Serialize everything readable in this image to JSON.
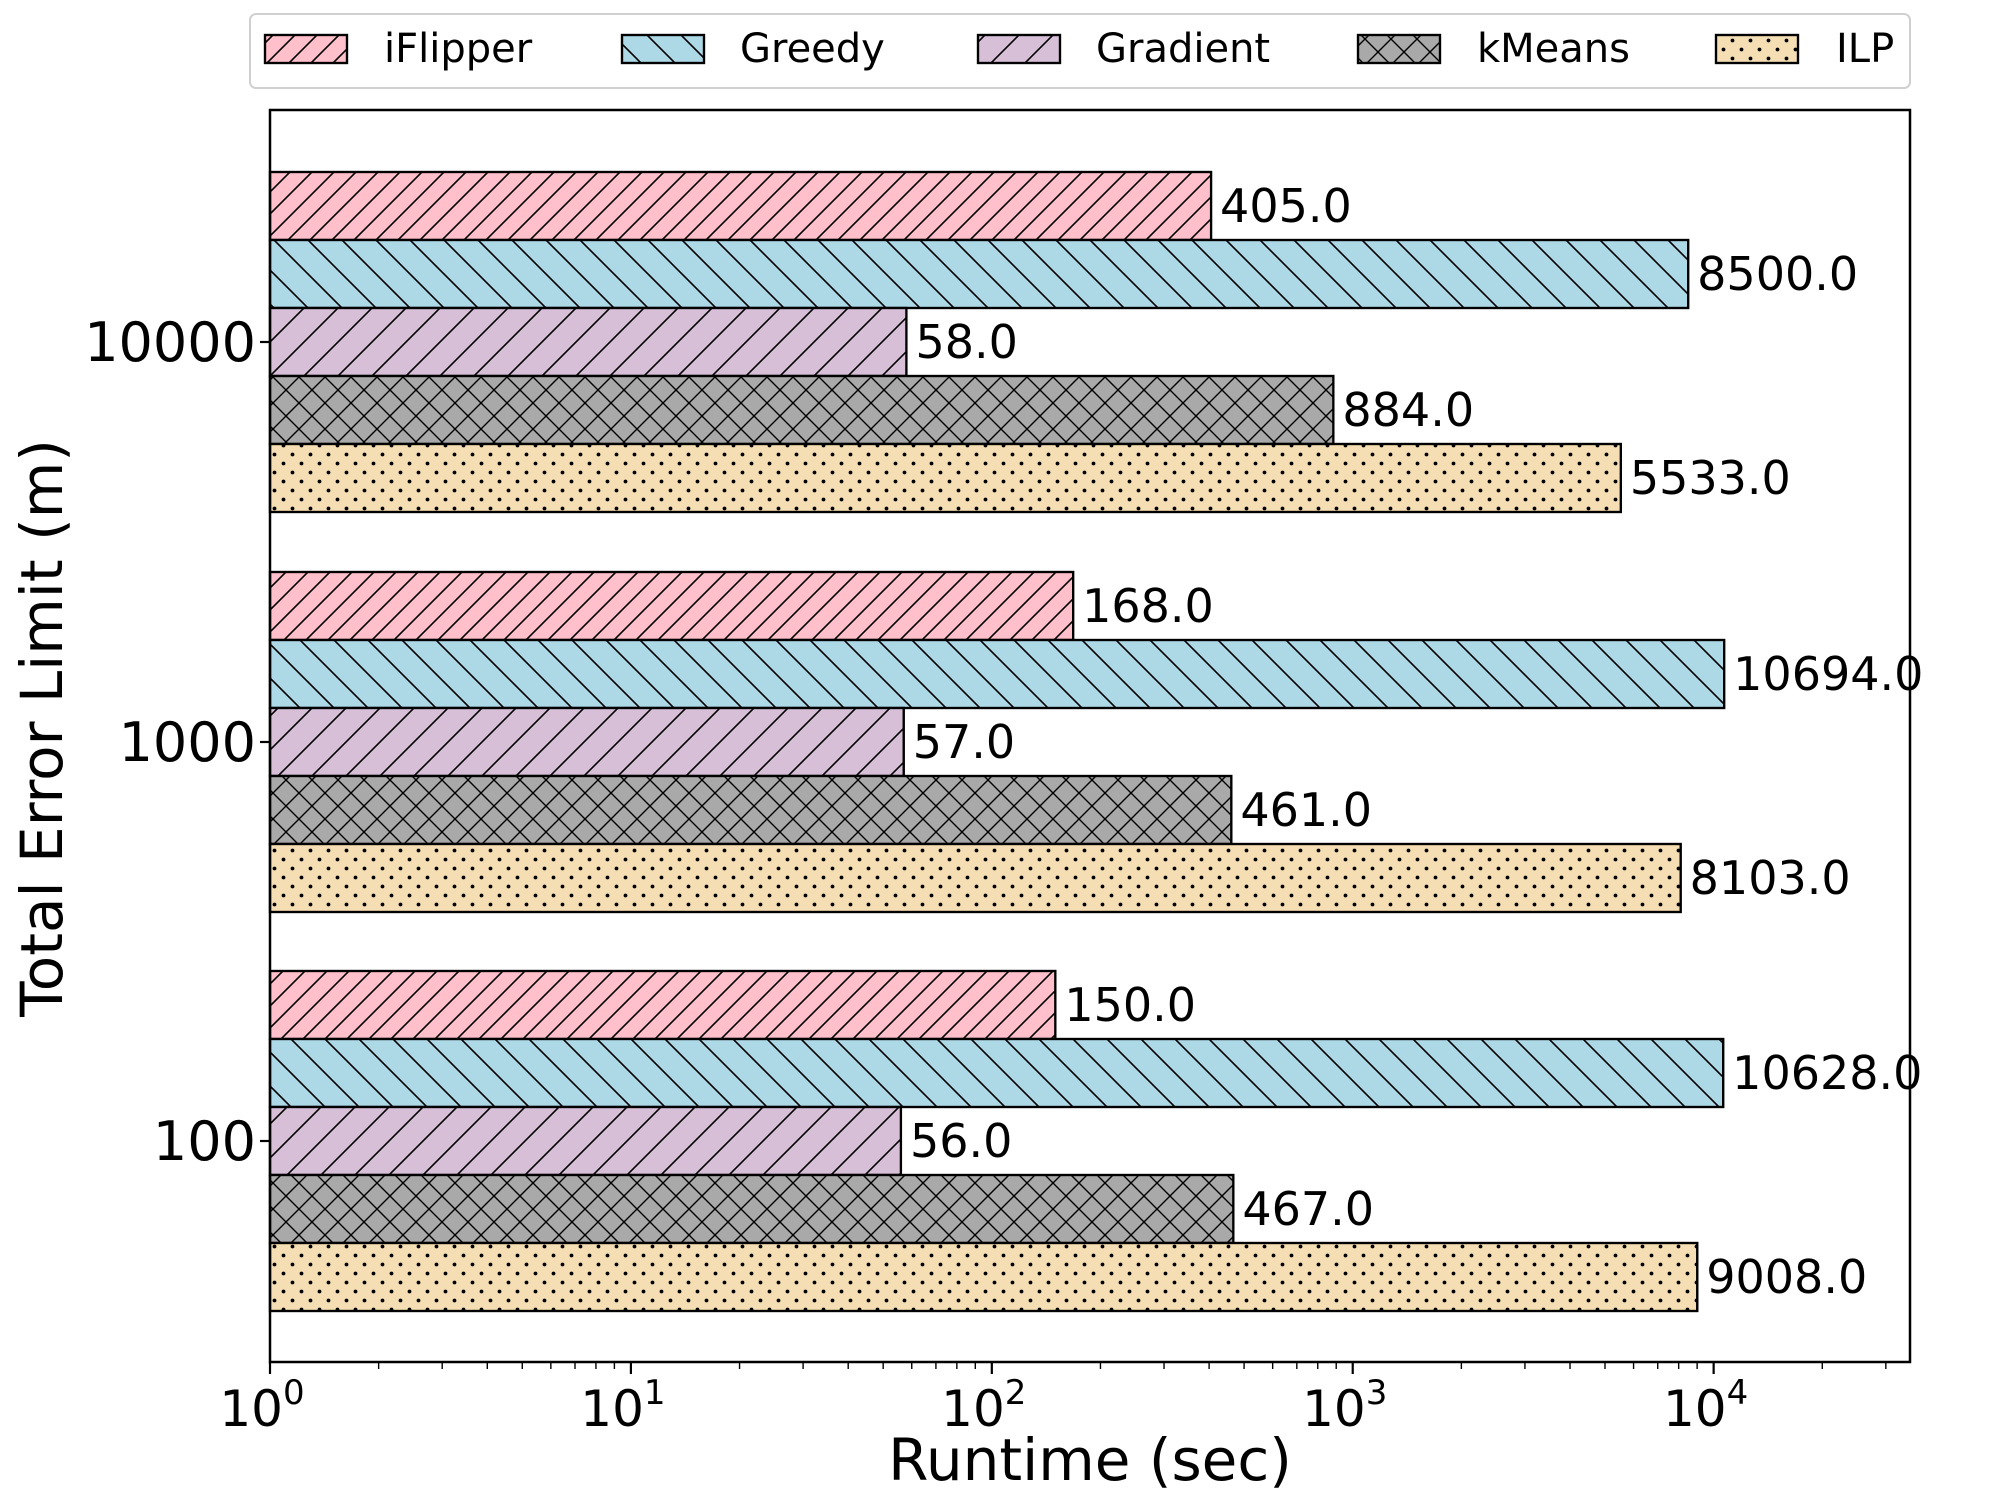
{
  "chart_data": {
    "type": "bar",
    "orientation": "horizontal",
    "xscale": "log",
    "xlabel": "Runtime (sec)",
    "ylabel": "Total Error Limit (m)",
    "xlim": [
      1,
      35000
    ],
    "x_ticks": [
      1,
      10,
      100,
      1000,
      10000
    ],
    "x_tick_base": "10",
    "x_tick_exponents": [
      "0",
      "1",
      "2",
      "3",
      "4"
    ],
    "categories": [
      "10000",
      "1000",
      "100"
    ],
    "legend_position": "top-center",
    "grid": false,
    "series": [
      {
        "name": "iFlipper",
        "values": [
          405.0,
          168.0,
          150.0
        ],
        "labels": [
          "405.0",
          "168.0",
          "150.0"
        ],
        "color": "#ffc0cb",
        "hatch": "forward-diagonal"
      },
      {
        "name": "Greedy",
        "values": [
          8500.0,
          10694.0,
          10628.0
        ],
        "labels": [
          "8500.0",
          "10694.0",
          "10628.0"
        ],
        "color": "#add8e6",
        "hatch": "back-diagonal"
      },
      {
        "name": "Gradient",
        "values": [
          58.0,
          57.0,
          56.0
        ],
        "labels": [
          "58.0",
          "57.0",
          "56.0"
        ],
        "color": "#d8bfd8",
        "hatch": "forward-diagonal-sparse"
      },
      {
        "name": "kMeans",
        "values": [
          884.0,
          461.0,
          467.0
        ],
        "labels": [
          "884.0",
          "461.0",
          "467.0"
        ],
        "color": "#a9a9a9",
        "hatch": "cross"
      },
      {
        "name": "ILP",
        "values": [
          5533.0,
          8103.0,
          9008.0
        ],
        "labels": [
          "5533.0",
          "8103.0",
          "9008.0"
        ],
        "color": "#f5deb3",
        "hatch": "dots"
      }
    ]
  }
}
